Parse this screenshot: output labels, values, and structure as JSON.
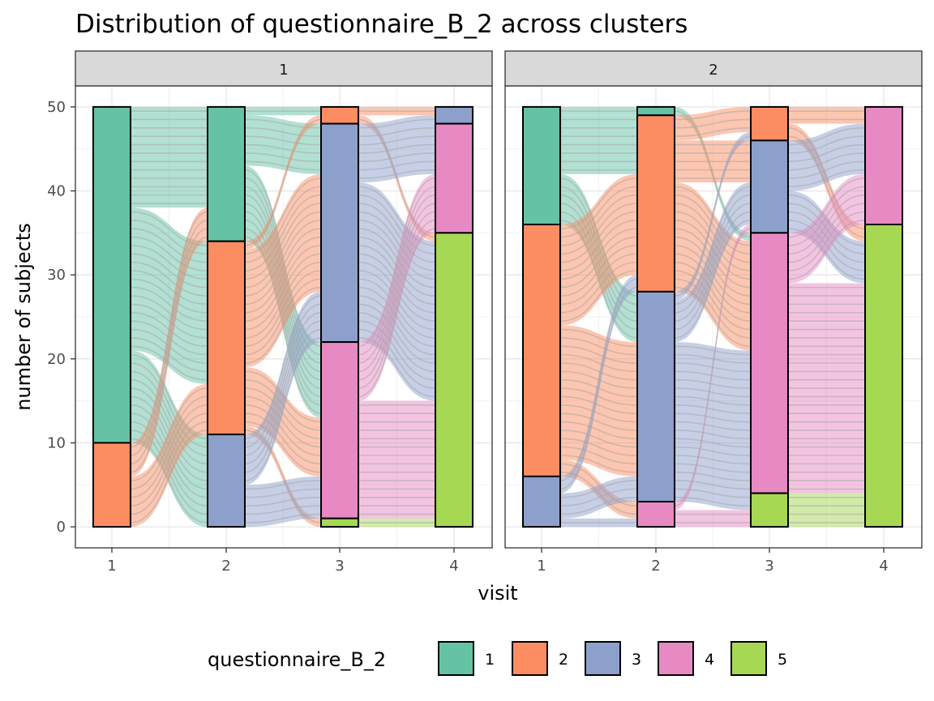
{
  "chart_data": {
    "type": "alluvial",
    "title": "Distribution of questionnaire_B_2 across clusters",
    "xlabel": "visit",
    "ylabel": "number of subjects",
    "x_categories": [
      "1",
      "2",
      "3",
      "4"
    ],
    "y_ticks": [
      0,
      10,
      20,
      30,
      40,
      50
    ],
    "ylim": [
      -2.5,
      52.5
    ],
    "grid": true,
    "legend": {
      "title": "questionnaire_B_2",
      "position": "bottom",
      "entries": [
        {
          "label": "1",
          "color": "#66c2a5"
        },
        {
          "label": "2",
          "color": "#fc8d62"
        },
        {
          "label": "3",
          "color": "#8da0cb"
        },
        {
          "label": "4",
          "color": "#e78ac3"
        },
        {
          "label": "5",
          "color": "#a6d854"
        }
      ]
    },
    "panels": [
      {
        "label": "1",
        "stacks": [
          {
            "visit": "1",
            "segments": [
              {
                "level": "1",
                "count": 40
              },
              {
                "level": "2",
                "count": 10
              }
            ]
          },
          {
            "visit": "2",
            "segments": [
              {
                "level": "1",
                "count": 16
              },
              {
                "level": "2",
                "count": 23
              },
              {
                "level": "3",
                "count": 11
              }
            ]
          },
          {
            "visit": "3",
            "segments": [
              {
                "level": "2",
                "count": 2
              },
              {
                "level": "3",
                "count": 26
              },
              {
                "level": "4",
                "count": 21
              },
              {
                "level": "5",
                "count": 1
              }
            ]
          },
          {
            "visit": "4",
            "segments": [
              {
                "level": "3",
                "count": 2
              },
              {
                "level": "4",
                "count": 13
              },
              {
                "level": "5",
                "count": 35
              }
            ]
          }
        ],
        "flows": [
          [
            {
              "from": "1",
              "to": "1",
              "n": 12
            },
            {
              "from": "1",
              "to": "2",
              "n": 17
            },
            {
              "from": "1",
              "to": "3",
              "n": 11
            },
            {
              "from": "2",
              "to": "1",
              "n": 4
            },
            {
              "from": "2",
              "to": "2",
              "n": 6
            }
          ],
          [
            {
              "from": "1",
              "to": "2",
              "n": 1
            },
            {
              "from": "1",
              "to": "3",
              "n": 6
            },
            {
              "from": "1",
              "to": "4",
              "n": 9
            },
            {
              "from": "2",
              "to": "2",
              "n": 1
            },
            {
              "from": "2",
              "to": "3",
              "n": 14
            },
            {
              "from": "2",
              "to": "4",
              "n": 7
            },
            {
              "from": "2",
              "to": "5",
              "n": 1
            },
            {
              "from": "3",
              "to": "3",
              "n": 6
            },
            {
              "from": "3",
              "to": "4",
              "n": 5
            }
          ],
          [
            {
              "from": "2",
              "to": "3",
              "n": 1
            },
            {
              "from": "2",
              "to": "5",
              "n": 1
            },
            {
              "from": "3",
              "to": "3",
              "n": 1
            },
            {
              "from": "3",
              "to": "4",
              "n": 6
            },
            {
              "from": "3",
              "to": "5",
              "n": 19
            },
            {
              "from": "4",
              "to": "4",
              "n": 7
            },
            {
              "from": "4",
              "to": "5",
              "n": 14
            },
            {
              "from": "5",
              "to": "5",
              "n": 1
            }
          ]
        ]
      },
      {
        "label": "2",
        "stacks": [
          {
            "visit": "1",
            "segments": [
              {
                "level": "1",
                "count": 14
              },
              {
                "level": "2",
                "count": 30
              },
              {
                "level": "3",
                "count": 6
              }
            ]
          },
          {
            "visit": "2",
            "segments": [
              {
                "level": "1",
                "count": 1
              },
              {
                "level": "2",
                "count": 21
              },
              {
                "level": "3",
                "count": 25
              },
              {
                "level": "4",
                "count": 3
              }
            ]
          },
          {
            "visit": "3",
            "segments": [
              {
                "level": "2",
                "count": 4
              },
              {
                "level": "3",
                "count": 11
              },
              {
                "level": "4",
                "count": 31
              },
              {
                "level": "5",
                "count": 4
              }
            ]
          },
          {
            "visit": "4",
            "segments": [
              {
                "level": "4",
                "count": 14
              },
              {
                "level": "5",
                "count": 36
              }
            ]
          }
        ],
        "flows": [
          [
            {
              "from": "1",
              "to": "1",
              "n": 1
            },
            {
              "from": "1",
              "to": "2",
              "n": 7
            },
            {
              "from": "1",
              "to": "3",
              "n": 6
            },
            {
              "from": "2",
              "to": "2",
              "n": 12
            },
            {
              "from": "2",
              "to": "3",
              "n": 16
            },
            {
              "from": "2",
              "to": "4",
              "n": 2
            },
            {
              "from": "3",
              "to": "2",
              "n": 2
            },
            {
              "from": "3",
              "to": "3",
              "n": 3
            },
            {
              "from": "3",
              "to": "4",
              "n": 1
            }
          ],
          [
            {
              "from": "1",
              "to": "4",
              "n": 1
            },
            {
              "from": "2",
              "to": "2",
              "n": 3
            },
            {
              "from": "2",
              "to": "3",
              "n": 5
            },
            {
              "from": "2",
              "to": "4",
              "n": 13
            },
            {
              "from": "3",
              "to": "2",
              "n": 1
            },
            {
              "from": "3",
              "to": "3",
              "n": 5
            },
            {
              "from": "3",
              "to": "4",
              "n": 17
            },
            {
              "from": "3",
              "to": "5",
              "n": 2
            },
            {
              "from": "4",
              "to": "3",
              "n": 1
            },
            {
              "from": "4",
              "to": "5",
              "n": 2
            }
          ],
          [
            {
              "from": "2",
              "to": "4",
              "n": 2
            },
            {
              "from": "2",
              "to": "5",
              "n": 2
            },
            {
              "from": "3",
              "to": "4",
              "n": 6
            },
            {
              "from": "3",
              "to": "5",
              "n": 5
            },
            {
              "from": "4",
              "to": "4",
              "n": 6
            },
            {
              "from": "4",
              "to": "5",
              "n": 25
            },
            {
              "from": "5",
              "to": "5",
              "n": 4
            }
          ]
        ]
      }
    ]
  }
}
